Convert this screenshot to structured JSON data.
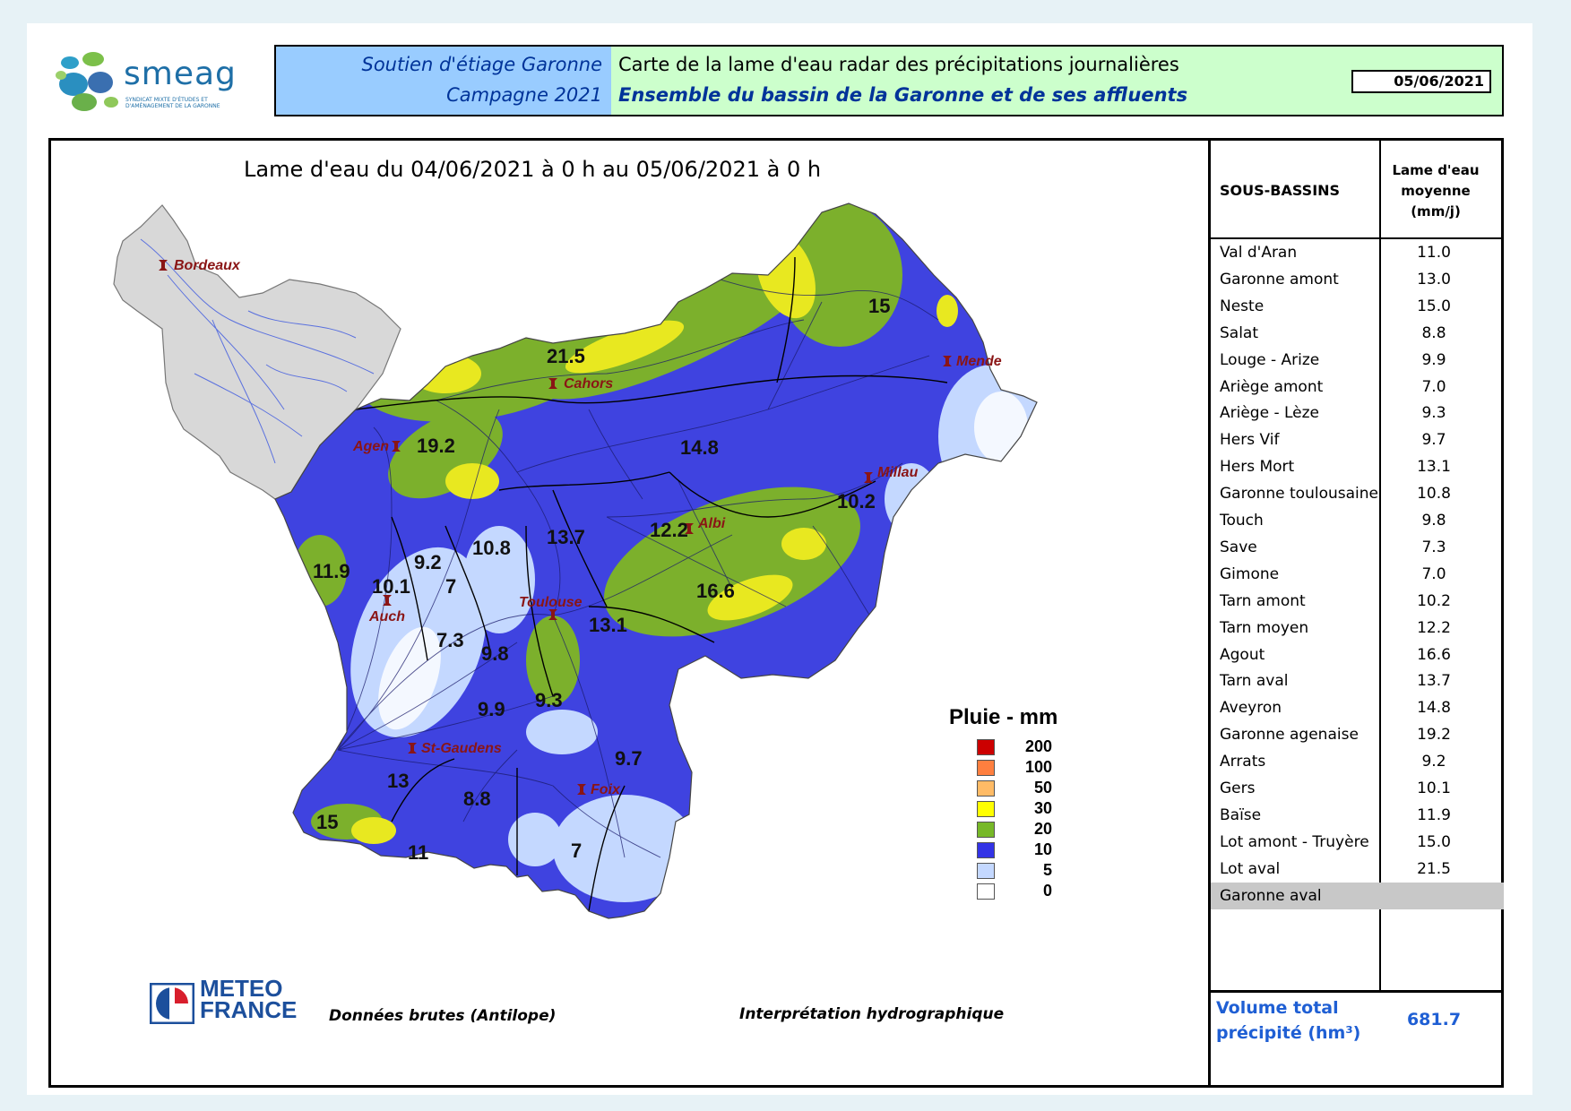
{
  "header": {
    "logo_word": "smeag",
    "logo_sub": "Syndicat mixte d'études et d'aménagement de la Garonne",
    "left_line1": "Soutien d'étiage Garonne",
    "left_line2": "Campagne 2021",
    "right_line1": "Carte de la lame d'eau radar des précipitations journalières",
    "right_line2": "Ensemble du bassin de la Garonne et de ses affluents",
    "date": "05/06/2021"
  },
  "map": {
    "title": "Lame d'eau du 04/06/2021 à 0 h au 05/06/2021 à 0 h",
    "cities": [
      {
        "name": "Bordeaux"
      },
      {
        "name": "Cahors"
      },
      {
        "name": "Mende"
      },
      {
        "name": "Agen"
      },
      {
        "name": "Millau"
      },
      {
        "name": "Albi"
      },
      {
        "name": "Toulouse"
      },
      {
        "name": "Auch"
      },
      {
        "name": "St-Gaudens"
      },
      {
        "name": "Foix"
      }
    ],
    "basin_values": [
      "15",
      "21.5",
      "19.2",
      "14.8",
      "10.2",
      "12.2",
      "13.7",
      "10.8",
      "9.2",
      "11.9",
      "10.1",
      "7",
      "16.6",
      "13.1",
      "7.3",
      "9.8",
      "9.3",
      "9.9",
      "9.7",
      "13",
      "8.8",
      "15",
      "11",
      "7"
    ]
  },
  "legend": {
    "title": "Pluie - mm",
    "items": [
      {
        "label": "200",
        "color": "#cc0000"
      },
      {
        "label": "100",
        "color": "#ff7f3f"
      },
      {
        "label": "50",
        "color": "#ffbb66"
      },
      {
        "label": "30",
        "color": "#ffff00"
      },
      {
        "label": "20",
        "color": "#77b828"
      },
      {
        "label": "10",
        "color": "#3333e6"
      },
      {
        "label": "5",
        "color": "#c4d8ff"
      },
      {
        "label": "0",
        "color": "#ffffff"
      }
    ]
  },
  "footer": {
    "meteo_line1": "METEO",
    "meteo_line2": "FRANCE",
    "data_source": "Données brutes (Antilope)",
    "interpretation": "Interprétation hydrographique"
  },
  "table": {
    "col_basin": "SOUS-BASSINS",
    "col_value_l1": "Lame d'eau",
    "col_value_l2": "moyenne",
    "col_value_l3": "(mm/j)",
    "rows": [
      {
        "name": "Val d'Aran",
        "value": "11.0"
      },
      {
        "name": "Garonne amont",
        "value": "13.0"
      },
      {
        "name": "Neste",
        "value": "15.0"
      },
      {
        "name": "Salat",
        "value": "8.8"
      },
      {
        "name": "Louge - Arize",
        "value": "9.9"
      },
      {
        "name": "Ariège amont",
        "value": "7.0"
      },
      {
        "name": "Ariège - Lèze",
        "value": "9.3"
      },
      {
        "name": "Hers Vif",
        "value": "9.7"
      },
      {
        "name": "Hers Mort",
        "value": "13.1"
      },
      {
        "name": "Garonne toulousaine",
        "value": "10.8"
      },
      {
        "name": "Touch",
        "value": "9.8"
      },
      {
        "name": "Save",
        "value": "7.3"
      },
      {
        "name": "Gimone",
        "value": "7.0"
      },
      {
        "name": "Tarn amont",
        "value": "10.2"
      },
      {
        "name": "Tarn moyen",
        "value": "12.2"
      },
      {
        "name": "Agout",
        "value": "16.6"
      },
      {
        "name": "Tarn aval",
        "value": "13.7"
      },
      {
        "name": "Aveyron",
        "value": "14.8"
      },
      {
        "name": "Garonne agenaise",
        "value": "19.2"
      },
      {
        "name": "Arrats",
        "value": "9.2"
      },
      {
        "name": "Gers",
        "value": "10.1"
      },
      {
        "name": "Baïse",
        "value": "11.9"
      },
      {
        "name": "Lot amont - Truyère",
        "value": "15.0"
      },
      {
        "name": "Lot aval",
        "value": "21.5"
      },
      {
        "name": "Garonne aval",
        "value": ""
      }
    ],
    "total_label_l1": "Volume total",
    "total_label_l2": "précipité (hm³)",
    "total_value": "681.7"
  }
}
